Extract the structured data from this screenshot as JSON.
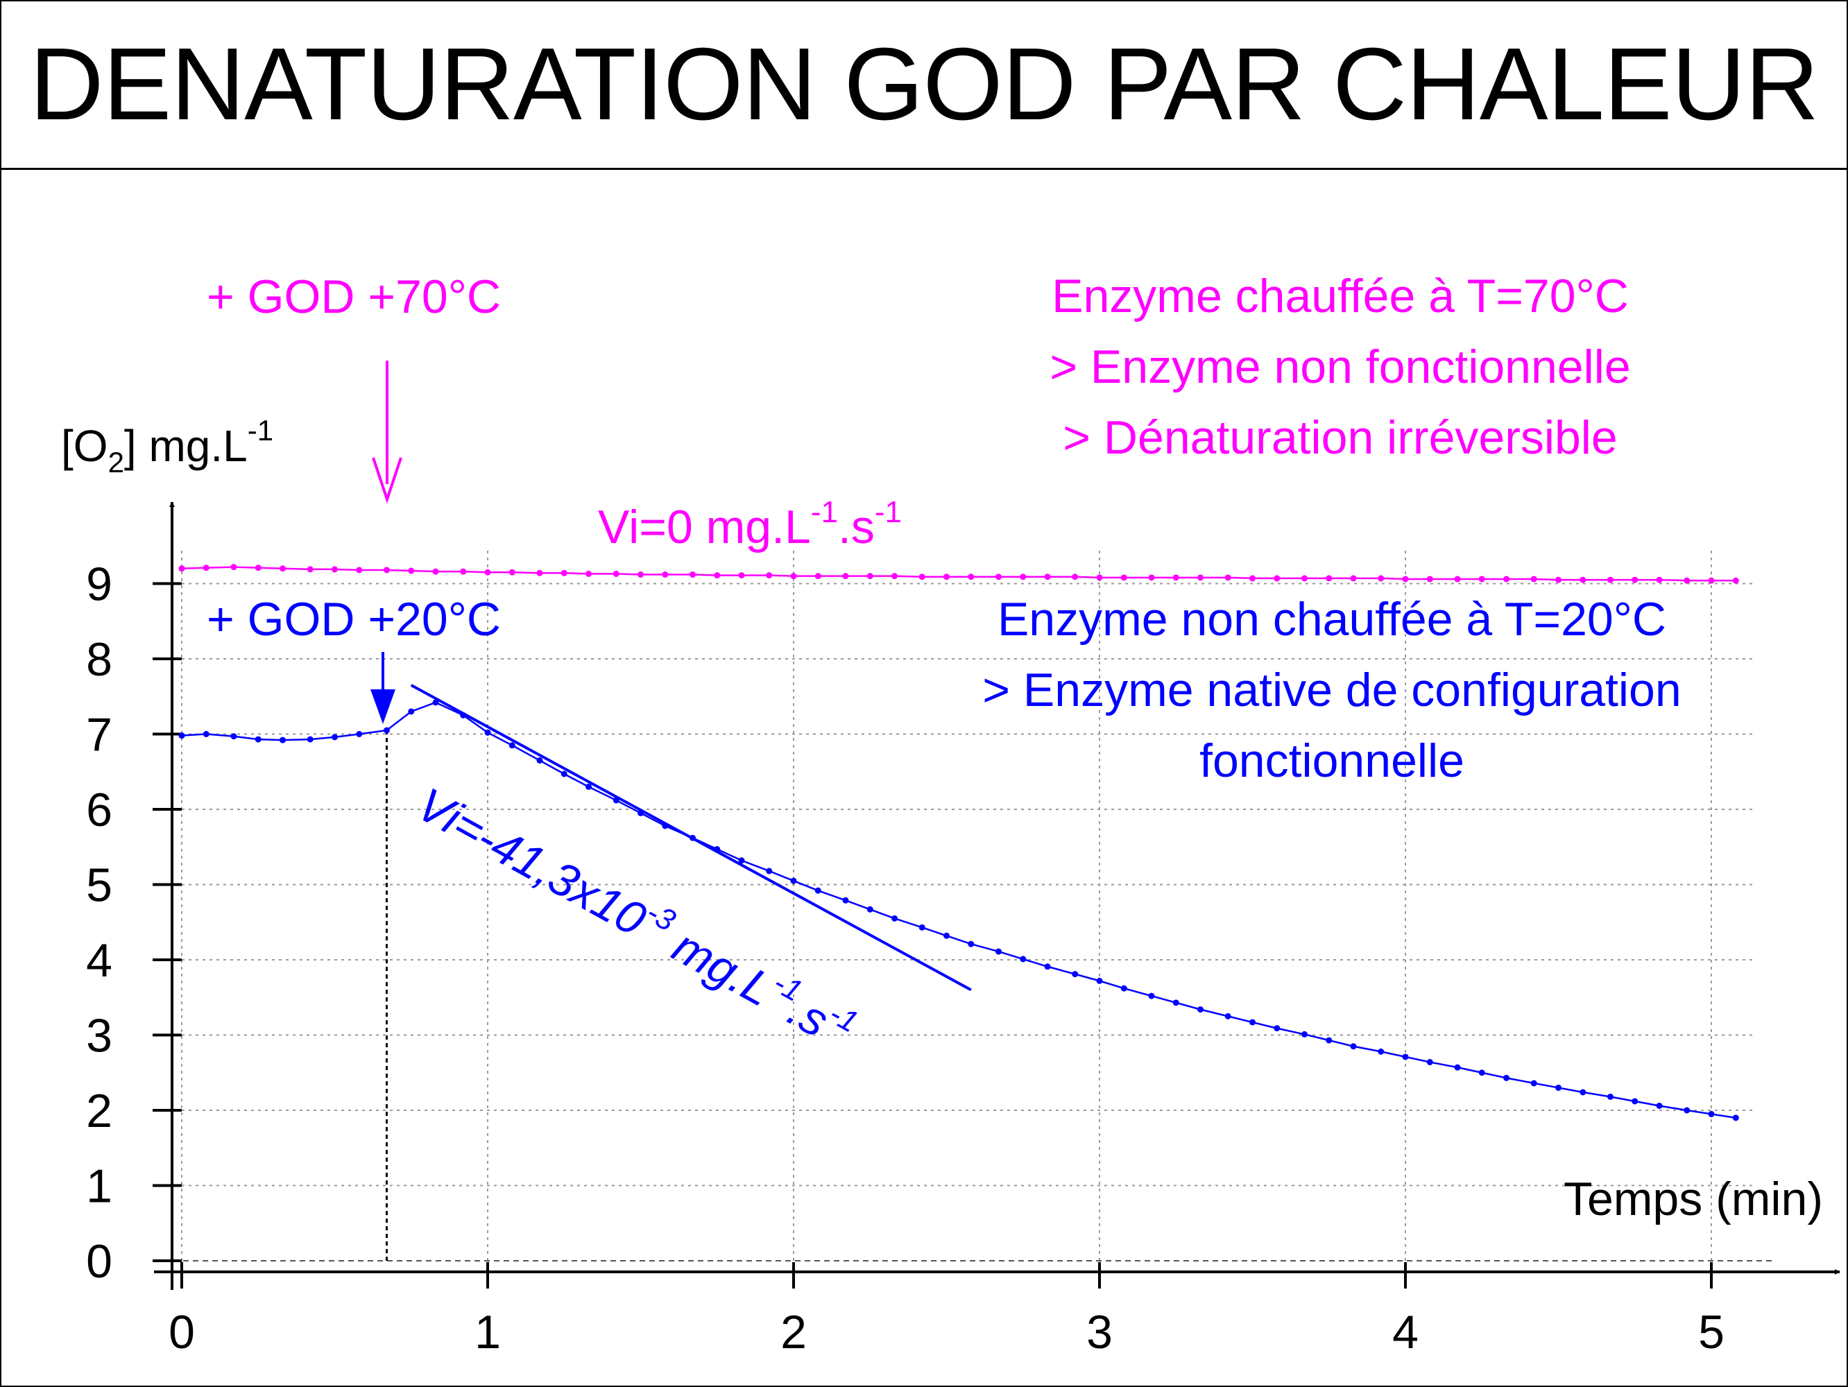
{
  "title": "DENATURATION GOD PAR CHALEUR",
  "colors": {
    "magenta": "#ff00ff",
    "blue": "#0000ff",
    "axis": "#000000",
    "grid": "#9a9a9a"
  },
  "annotations": {
    "arrow_70": "+ GOD +70°C",
    "arrow_20": "+ GOD +20°C",
    "hot_lines": [
      "Enzyme chauffée à T=70°C",
      "> Enzyme non fonctionnelle",
      "> Dénaturation irréversible"
    ],
    "cold_lines": [
      "Enzyme non chauffée à T=20°C",
      "> Enzyme native de configuration",
      "fonctionnelle"
    ],
    "vi_hot": {
      "base": "Vi=0 mg.L",
      "sup1": "-1",
      "mid": ".s",
      "sup2": "-1"
    },
    "vi_cold": {
      "base": "Vi=-41,3x10",
      "sup1": "-3",
      "mid1": " mg.L",
      "sup2": "-1",
      "mid2": ".s",
      "sup3": "-1"
    }
  },
  "chart_data": {
    "type": "line",
    "title": "DENATURATION GOD PAR CHALEUR",
    "ylabel": {
      "pre": "[O",
      "sub": "2",
      "post": "] mg.L",
      "sup": "-1"
    },
    "xlabel": "Temps (min)",
    "xlim": [
      0,
      5.2
    ],
    "ylim": [
      0,
      9.5
    ],
    "xticks": [
      0,
      1,
      2,
      3,
      4,
      5
    ],
    "yticks": [
      0,
      1,
      2,
      3,
      4,
      5,
      6,
      7,
      8,
      9
    ],
    "grid": true,
    "injection_time": 0.67,
    "series": [
      {
        "color": "#ff00ff",
        "x": [
          0,
          0.08,
          0.17,
          0.25,
          0.33,
          0.42,
          0.5,
          0.58,
          0.67,
          0.75,
          0.83,
          0.92,
          1.0,
          1.08,
          1.17,
          1.25,
          1.33,
          1.42,
          1.5,
          1.58,
          1.67,
          1.75,
          1.83,
          1.92,
          2.0,
          2.08,
          2.17,
          2.25,
          2.33,
          2.42,
          2.5,
          2.58,
          2.67,
          2.75,
          2.83,
          2.92,
          3.0,
          3.08,
          3.17,
          3.25,
          3.33,
          3.42,
          3.5,
          3.58,
          3.67,
          3.75,
          3.83,
          3.92,
          4.0,
          4.08,
          4.17,
          4.25,
          4.33,
          4.42,
          4.5,
          4.58,
          4.67,
          4.75,
          4.83,
          4.92,
          5.0,
          5.08
        ],
        "y": [
          9.2,
          9.21,
          9.22,
          9.21,
          9.2,
          9.19,
          9.19,
          9.18,
          9.18,
          9.17,
          9.16,
          9.16,
          9.15,
          9.15,
          9.14,
          9.14,
          9.13,
          9.13,
          9.12,
          9.12,
          9.12,
          9.11,
          9.11,
          9.11,
          9.1,
          9.1,
          9.1,
          9.1,
          9.1,
          9.09,
          9.09,
          9.09,
          9.09,
          9.09,
          9.09,
          9.09,
          9.08,
          9.08,
          9.08,
          9.08,
          9.08,
          9.08,
          9.07,
          9.07,
          9.07,
          9.07,
          9.07,
          9.07,
          9.06,
          9.06,
          9.06,
          9.06,
          9.06,
          9.06,
          9.05,
          9.05,
          9.05,
          9.05,
          9.05,
          9.04,
          9.04,
          9.04
        ]
      },
      {
        "color": "#0000ff",
        "x": [
          0,
          0.08,
          0.17,
          0.25,
          0.33,
          0.42,
          0.5,
          0.58,
          0.67,
          0.75,
          0.83,
          0.92,
          1.0,
          1.08,
          1.17,
          1.25,
          1.33,
          1.42,
          1.5,
          1.58,
          1.67,
          1.75,
          1.83,
          1.92,
          2.0,
          2.08,
          2.17,
          2.25,
          2.33,
          2.42,
          2.5,
          2.58,
          2.67,
          2.75,
          2.83,
          2.92,
          3.0,
          3.08,
          3.17,
          3.25,
          3.33,
          3.42,
          3.5,
          3.58,
          3.67,
          3.75,
          3.83,
          3.92,
          4.0,
          4.08,
          4.17,
          4.25,
          4.33,
          4.42,
          4.5,
          4.58,
          4.67,
          4.75,
          4.83,
          4.92,
          5.0,
          5.08
        ],
        "y": [
          6.98,
          7.0,
          6.97,
          6.93,
          6.92,
          6.93,
          6.96,
          7.0,
          7.05,
          7.3,
          7.42,
          7.25,
          7.02,
          6.85,
          6.65,
          6.47,
          6.3,
          6.12,
          5.95,
          5.78,
          5.62,
          5.47,
          5.32,
          5.18,
          5.05,
          4.92,
          4.79,
          4.67,
          4.55,
          4.43,
          4.32,
          4.21,
          4.11,
          4.01,
          3.91,
          3.81,
          3.72,
          3.62,
          3.52,
          3.43,
          3.34,
          3.25,
          3.17,
          3.09,
          3.01,
          2.93,
          2.85,
          2.78,
          2.71,
          2.64,
          2.57,
          2.5,
          2.43,
          2.36,
          2.3,
          2.24,
          2.18,
          2.12,
          2.06,
          2.0,
          1.95,
          1.9
        ]
      }
    ],
    "tangent": {
      "color": "#0000ff",
      "x": [
        0.75,
        2.58
      ],
      "y": [
        7.65,
        3.6
      ]
    }
  }
}
